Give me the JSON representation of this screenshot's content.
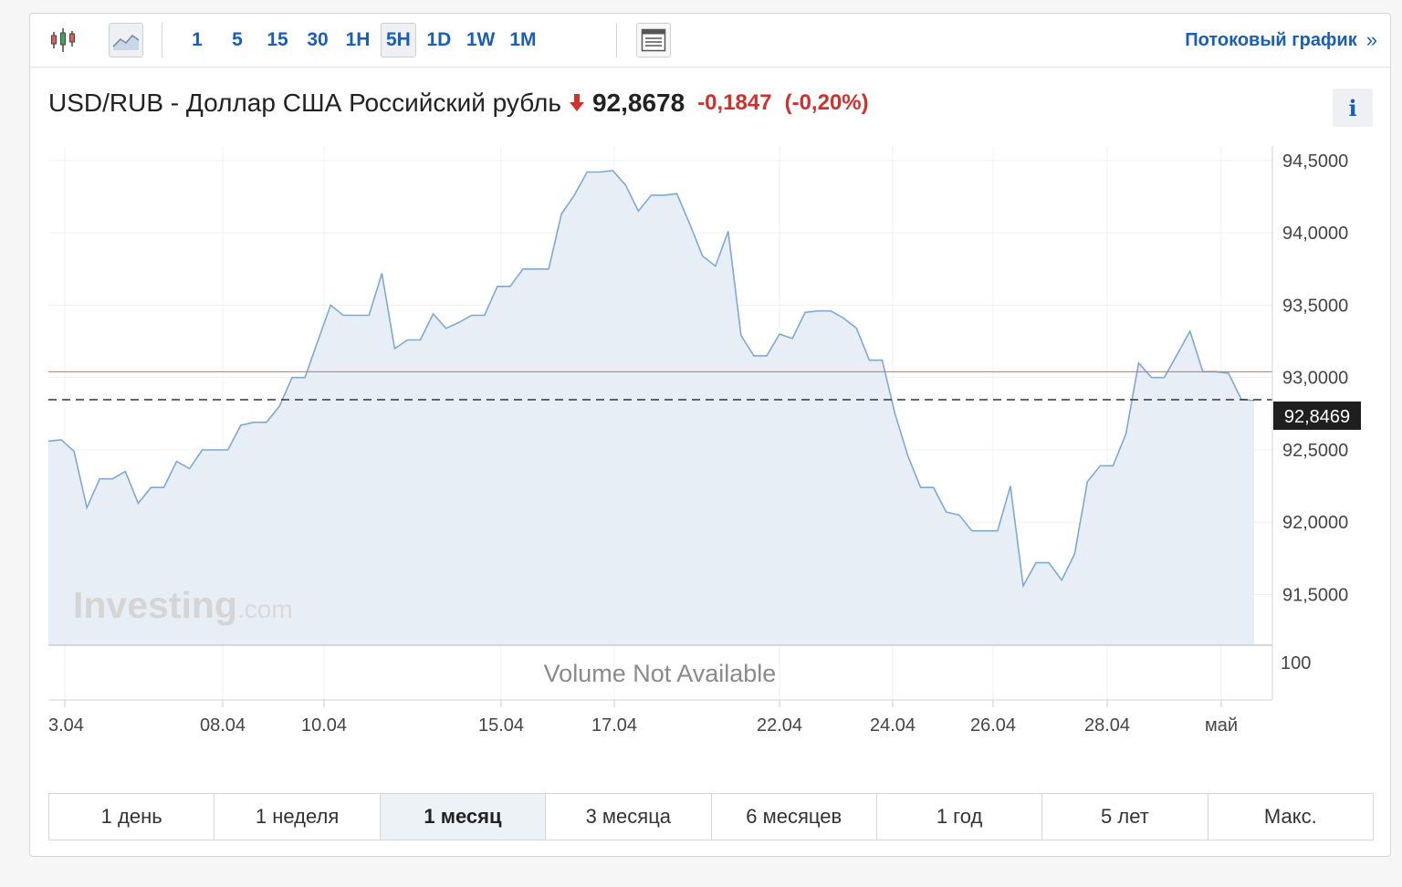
{
  "toolbar": {
    "chart_type_icons": [
      "candlestick-icon",
      "area-chart-icon"
    ],
    "periods": [
      {
        "label": "1",
        "active": false
      },
      {
        "label": "5",
        "active": false
      },
      {
        "label": "15",
        "active": false
      },
      {
        "label": "30",
        "active": false
      },
      {
        "label": "1H",
        "active": false
      },
      {
        "label": "5H",
        "active": true
      },
      {
        "label": "1D",
        "active": false
      },
      {
        "label": "1W",
        "active": false
      },
      {
        "label": "1M",
        "active": false
      }
    ],
    "layout_icon": "layout-icon",
    "stream_link": "Потоковый график",
    "stream_chevron": "»"
  },
  "header": {
    "title": "USD/RUB - Доллар США Российский рубль",
    "price": "92,8678",
    "change": "-0,1847",
    "change_pct": "(-0,20%)",
    "info_label": "i"
  },
  "colors": {
    "line": "#7fa9d3",
    "area": "#e8eef6",
    "accent": "#1a5fb4",
    "negative": "#d0312d",
    "ref_line": "#e8625d"
  },
  "chart_data": {
    "type": "area",
    "ylim": [
      91.15,
      94.6
    ],
    "y_ticks": [
      "94,5000",
      "94,0000",
      "93,5000",
      "93,0000",
      "92,5000",
      "92,0000",
      "91,5000"
    ],
    "x_ticks": [
      "3.04",
      "08.04",
      "10.04",
      "15.04",
      "17.04",
      "22.04",
      "24.04",
      "26.04",
      "28.04",
      "май"
    ],
    "reference_line_value": 93.04,
    "current_value": 92.8469,
    "current_label": "92,8469",
    "watermark_main": "Investing",
    "watermark_suffix": ".com",
    "volume_scale_label": "100",
    "volume_text": "Volume Not Available",
    "series": [
      {
        "values": [
          92.56,
          92.57,
          92.49,
          92.1,
          92.3,
          92.3,
          92.35,
          92.13,
          92.24,
          92.24,
          92.42,
          92.37,
          92.5,
          92.5,
          92.5,
          92.67,
          92.69,
          92.69,
          92.8,
          93.0,
          93.0,
          93.25,
          93.5,
          93.43,
          93.43,
          93.43,
          93.72,
          93.2,
          93.26,
          93.26,
          93.44,
          93.34,
          93.38,
          93.43,
          93.43,
          93.63,
          93.63,
          93.75,
          93.75,
          93.75,
          94.13,
          94.26,
          94.42,
          94.42,
          94.43,
          94.33,
          94.15,
          94.26,
          94.26,
          94.27,
          94.06,
          93.84,
          93.77,
          94.01,
          93.29,
          93.15,
          93.15,
          93.3,
          93.27,
          93.45,
          93.46,
          93.46,
          93.41,
          93.34,
          93.12,
          93.12,
          92.75,
          92.46,
          92.24,
          92.24,
          92.07,
          92.05,
          91.94,
          91.94,
          91.94,
          92.25,
          91.56,
          91.72,
          91.72,
          91.6,
          91.78,
          92.28,
          92.39,
          92.39,
          92.61,
          93.1,
          93.0,
          93.0,
          93.16,
          93.32,
          93.04,
          93.04,
          93.03,
          92.85,
          92.84
        ]
      }
    ]
  },
  "ranges": [
    {
      "label": "1 день",
      "active": false
    },
    {
      "label": "1 неделя",
      "active": false
    },
    {
      "label": "1 месяц",
      "active": true
    },
    {
      "label": "3 месяца",
      "active": false
    },
    {
      "label": "6 месяцев",
      "active": false
    },
    {
      "label": "1 год",
      "active": false
    },
    {
      "label": "5 лет",
      "active": false
    },
    {
      "label": "Макс.",
      "active": false
    }
  ]
}
